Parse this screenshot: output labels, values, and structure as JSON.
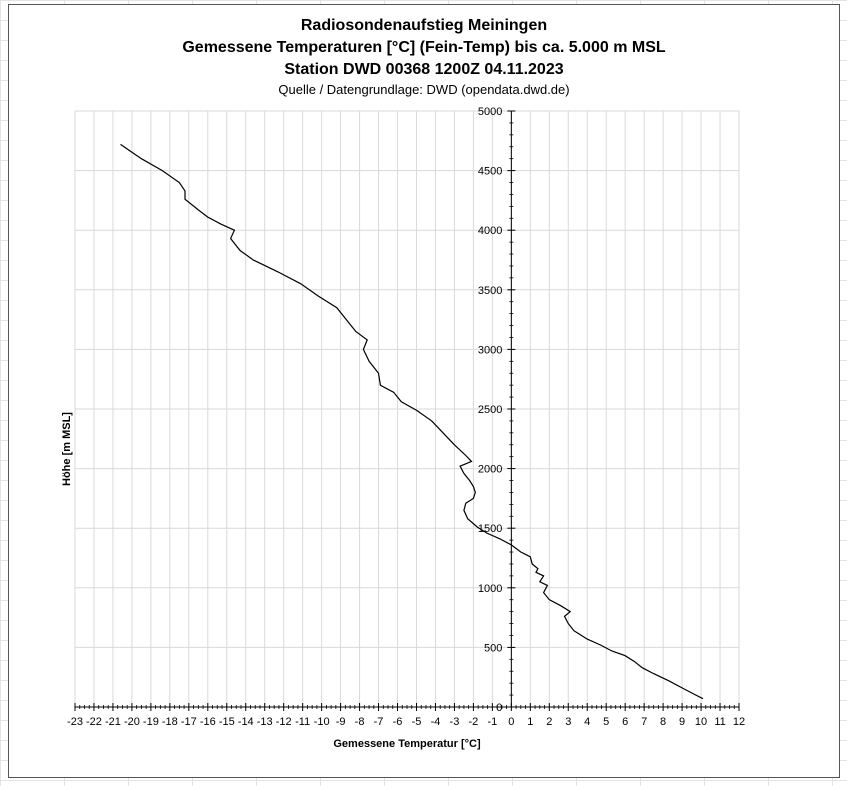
{
  "chart_data": {
    "type": "line",
    "title_lines": [
      "Radiosondenaufstieg Meiningen",
      "Gemessene Temperaturen [°C] (Fein-Temp) bis ca. 5.000 m MSL",
      "Station DWD 00368 1200Z 04.11.2023"
    ],
    "subtitle": "Quelle / Datengrundlage: DWD (opendata.dwd.de)",
    "xlabel": "Gemessene Temperatur [°C]",
    "ylabel": "Höhe [m MSL]",
    "xlim": [
      -23,
      12
    ],
    "ylim": [
      0,
      5000
    ],
    "x_ticks": [
      -23,
      -22,
      -21,
      -20,
      -19,
      -18,
      -17,
      -16,
      -15,
      -14,
      -13,
      -12,
      -11,
      -10,
      -9,
      -8,
      -7,
      -6,
      -5,
      -4,
      -3,
      -2,
      -1,
      0,
      1,
      2,
      3,
      4,
      5,
      6,
      7,
      8,
      9,
      10,
      11,
      12
    ],
    "y_ticks": [
      0,
      500,
      1000,
      1500,
      2000,
      2500,
      3000,
      3500,
      4000,
      4500,
      5000
    ],
    "grid": true,
    "line_color": "#000000",
    "series": [
      {
        "points": [
          [
            10.1,
            70
          ],
          [
            9.6,
            110
          ],
          [
            9.0,
            160
          ],
          [
            8.3,
            220
          ],
          [
            7.5,
            280
          ],
          [
            6.9,
            330
          ],
          [
            6.5,
            380
          ],
          [
            6.0,
            430
          ],
          [
            5.3,
            470
          ],
          [
            4.7,
            520
          ],
          [
            4.0,
            570
          ],
          [
            3.6,
            610
          ],
          [
            3.3,
            640
          ],
          [
            3.0,
            700
          ],
          [
            2.8,
            760
          ],
          [
            3.1,
            800
          ],
          [
            2.6,
            850
          ],
          [
            2.0,
            900
          ],
          [
            1.7,
            960
          ],
          [
            1.9,
            1020
          ],
          [
            1.5,
            1050
          ],
          [
            1.7,
            1100
          ],
          [
            1.3,
            1130
          ],
          [
            1.4,
            1160
          ],
          [
            1.1,
            1200
          ],
          [
            1.0,
            1260
          ],
          [
            0.5,
            1300
          ],
          [
            0.0,
            1360
          ],
          [
            -0.6,
            1410
          ],
          [
            -1.3,
            1460
          ],
          [
            -1.8,
            1510
          ],
          [
            -2.3,
            1580
          ],
          [
            -2.5,
            1650
          ],
          [
            -2.4,
            1710
          ],
          [
            -2.0,
            1750
          ],
          [
            -1.9,
            1800
          ],
          [
            -2.0,
            1850
          ],
          [
            -2.2,
            1900
          ],
          [
            -2.5,
            1960
          ],
          [
            -2.7,
            2020
          ],
          [
            -2.1,
            2060
          ],
          [
            -2.4,
            2110
          ],
          [
            -3.0,
            2200
          ],
          [
            -3.6,
            2300
          ],
          [
            -4.2,
            2400
          ],
          [
            -5.0,
            2490
          ],
          [
            -5.8,
            2560
          ],
          [
            -6.2,
            2640
          ],
          [
            -6.9,
            2700
          ],
          [
            -7.0,
            2800
          ],
          [
            -7.5,
            2900
          ],
          [
            -7.8,
            3000
          ],
          [
            -7.6,
            3080
          ],
          [
            -8.2,
            3150
          ],
          [
            -8.7,
            3250
          ],
          [
            -9.2,
            3350
          ],
          [
            -10.2,
            3450
          ],
          [
            -11.1,
            3550
          ],
          [
            -12.3,
            3650
          ],
          [
            -13.6,
            3750
          ],
          [
            -14.3,
            3830
          ],
          [
            -14.8,
            3930
          ],
          [
            -14.6,
            4000
          ],
          [
            -15.3,
            4050
          ],
          [
            -16.0,
            4110
          ],
          [
            -16.5,
            4170
          ],
          [
            -17.2,
            4260
          ],
          [
            -17.2,
            4330
          ],
          [
            -17.5,
            4400
          ],
          [
            -18.4,
            4500
          ],
          [
            -19.5,
            4600
          ],
          [
            -20.6,
            4720
          ]
        ]
      }
    ]
  }
}
